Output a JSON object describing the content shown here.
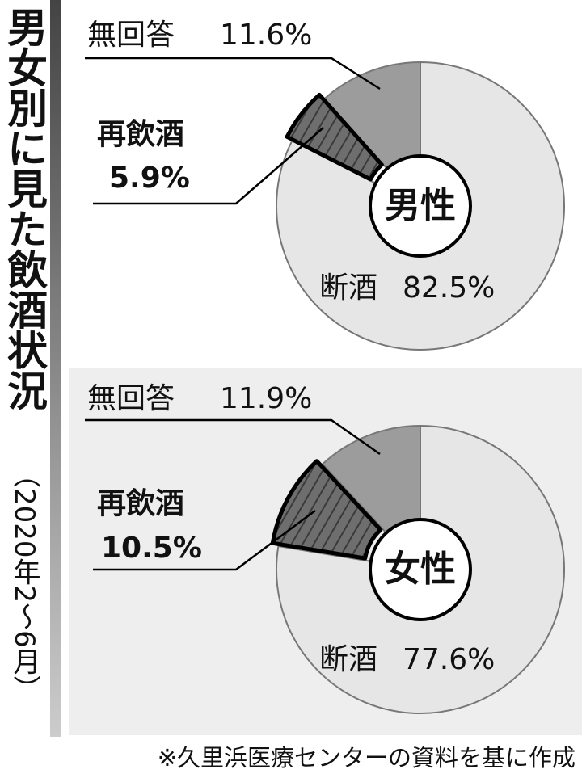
{
  "title": "男女別に見た飲酒状況",
  "subtitle": "（2020年2～6月）",
  "note": "※久里浜医療センターの資料を基に作成",
  "chart_data": [
    {
      "type": "donut",
      "center_label": "男性",
      "categories": [
        "断酒",
        "再飲酒",
        "無回答"
      ],
      "values": [
        82.5,
        5.9,
        11.6
      ],
      "value_labels": [
        "82.5%",
        "5.9%",
        "11.6%"
      ],
      "colors": [
        "#e6e6e6",
        "#6e6e6e",
        "#9c9c9c"
      ]
    },
    {
      "type": "donut",
      "center_label": "女性",
      "categories": [
        "断酒",
        "再飲酒",
        "無回答"
      ],
      "values": [
        77.6,
        10.5,
        11.9
      ],
      "value_labels": [
        "77.6%",
        "10.5%",
        "11.9%"
      ],
      "colors": [
        "#e6e6e6",
        "#6e6e6e",
        "#9c9c9c"
      ]
    }
  ]
}
